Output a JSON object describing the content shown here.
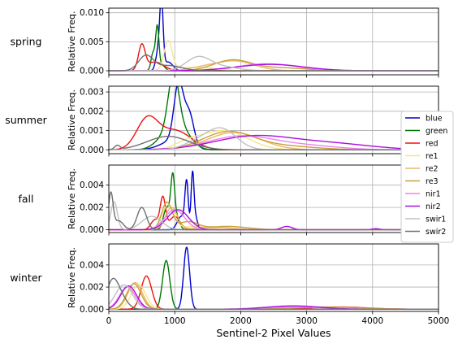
{
  "chart_data": {
    "type": "line",
    "xlabel": "Sentinel-2 Pixel Values",
    "ylabel": "Relative Freq.",
    "xlim": [
      0,
      5000
    ],
    "x_ticks": [
      "0",
      "1000",
      "2000",
      "3000",
      "4000",
      "5000"
    ],
    "grid": true,
    "legend_position": "right",
    "series_styles": [
      {
        "name": "blue",
        "color": "#0000cc"
      },
      {
        "name": "green",
        "color": "#007700"
      },
      {
        "name": "red",
        "color": "#ee1111"
      },
      {
        "name": "re1",
        "color": "#f5e68c"
      },
      {
        "name": "re2",
        "color": "#e8b860"
      },
      {
        "name": "re3",
        "color": "#c9a040"
      },
      {
        "name": "nir1",
        "color": "#ee82ee"
      },
      {
        "name": "nir2",
        "color": "#aa11dd"
      },
      {
        "name": "swir1",
        "color": "#c0c0c0"
      },
      {
        "name": "swir2",
        "color": "#707070"
      }
    ],
    "panels": [
      {
        "season": "spring",
        "ylim": [
          -0.0007,
          0.0108
        ],
        "y_ticks": [
          0,
          0.005,
          0.01
        ],
        "y_tick_labels": [
          "0.000",
          "0.005",
          "0.010"
        ],
        "series": [
          {
            "name": "blue",
            "peaks": [
              [
                800,
                0.0098,
                25
              ],
              [
                760,
                0.004,
                40
              ],
              [
                900,
                0.0015,
                70
              ]
            ]
          },
          {
            "name": "green",
            "peaks": [
              [
                670,
                0.003,
                30
              ],
              [
                735,
                0.0072,
                25
              ],
              [
                800,
                0.001,
                50
              ]
            ]
          },
          {
            "name": "red",
            "peaks": [
              [
                500,
                0.0042,
                50
              ],
              [
                700,
                0.0015,
                130
              ]
            ]
          },
          {
            "name": "re1",
            "peaks": [
              [
                900,
                0.005,
                60
              ],
              [
                1300,
                0.0006,
                300
              ]
            ]
          },
          {
            "name": "re2",
            "peaks": [
              [
                1900,
                0.0017,
                300
              ],
              [
                1400,
                0.0004,
                200
              ]
            ]
          },
          {
            "name": "re3",
            "peaks": [
              [
                1870,
                0.0018,
                280
              ],
              [
                2600,
                0.0005,
                400
              ]
            ]
          },
          {
            "name": "nir1",
            "peaks": [
              [
                2400,
                0.0012,
                450
              ]
            ]
          },
          {
            "name": "nir2",
            "peaks": [
              [
                2450,
                0.0011,
                500
              ]
            ]
          },
          {
            "name": "swir1",
            "peaks": [
              [
                1350,
                0.0022,
                180
              ],
              [
                1700,
                0.0007,
                250
              ]
            ]
          },
          {
            "name": "swir2",
            "peaks": [
              [
                560,
                0.0025,
                110
              ],
              [
                900,
                0.0009,
                200
              ]
            ]
          }
        ]
      },
      {
        "season": "summer",
        "ylim": [
          -0.0002,
          0.0033
        ],
        "y_ticks": [
          0,
          0.001,
          0.002,
          0.003
        ],
        "y_tick_labels": [
          "0.000",
          "0.001",
          "0.002",
          "0.003"
        ],
        "series": [
          {
            "name": "blue",
            "peaks": [
              [
                1060,
                0.003,
                70
              ],
              [
                1220,
                0.0016,
                70
              ],
              [
                1000,
                0.0005,
                200
              ]
            ]
          },
          {
            "name": "green",
            "peaks": [
              [
                980,
                0.0029,
                80
              ],
              [
                1100,
                0.001,
                150
              ],
              [
                850,
                0.0006,
                150
              ]
            ]
          },
          {
            "name": "red",
            "peaks": [
              [
                580,
                0.0015,
                160
              ],
              [
                1000,
                0.001,
                250
              ]
            ]
          },
          {
            "name": "re1",
            "peaks": [
              [
                1750,
                0.001,
                350
              ],
              [
                1200,
                0.0003,
                200
              ]
            ]
          },
          {
            "name": "re2",
            "peaks": [
              [
                1900,
                0.0009,
                400
              ]
            ]
          },
          {
            "name": "re3",
            "peaks": [
              [
                1800,
                0.0009,
                380
              ],
              [
                2600,
                0.0002,
                500
              ]
            ]
          },
          {
            "name": "nir1",
            "peaks": [
              [
                2000,
                0.0007,
                500
              ],
              [
                3000,
                0.0002,
                500
              ]
            ]
          },
          {
            "name": "nir2",
            "peaks": [
              [
                2200,
                0.0007,
                600
              ],
              [
                3400,
                0.0003,
                600
              ]
            ]
          },
          {
            "name": "swir1",
            "peaks": [
              [
                1700,
                0.0011,
                230
              ],
              [
                1300,
                0.0003,
                200
              ]
            ]
          },
          {
            "name": "swir2",
            "peaks": [
              [
                130,
                0.0002,
                40
              ],
              [
                900,
                0.0007,
                320
              ]
            ]
          }
        ]
      },
      {
        "season": "fall",
        "ylim": [
          -0.00025,
          0.0058
        ],
        "y_ticks": [
          0,
          0.002,
          0.004
        ],
        "y_tick_labels": [
          "0.000",
          "0.002",
          "0.004"
        ],
        "series": [
          {
            "name": "blue",
            "peaks": [
              [
                1270,
                0.005,
                22
              ],
              [
                1180,
                0.004,
                25
              ],
              [
                1100,
                0.0012,
                60
              ],
              [
                1320,
                0.001,
                30
              ]
            ]
          },
          {
            "name": "green",
            "peaks": [
              [
                970,
                0.0045,
                30
              ],
              [
                880,
                0.002,
                50
              ],
              [
                1040,
                0.001,
                40
              ]
            ]
          },
          {
            "name": "red",
            "peaks": [
              [
                820,
                0.0028,
                40
              ],
              [
                700,
                0.0009,
                60
              ],
              [
                1000,
                0.0012,
                80
              ]
            ]
          },
          {
            "name": "re1",
            "peaks": [
              [
                900,
                0.0022,
                90
              ],
              [
                1300,
                0.0003,
                200
              ]
            ]
          },
          {
            "name": "re2",
            "peaks": [
              [
                950,
                0.002,
                90
              ],
              [
                1600,
                0.0002,
                300
              ]
            ]
          },
          {
            "name": "re3",
            "peaks": [
              [
                880,
                0.0024,
                80
              ],
              [
                1200,
                0.0007,
                150
              ],
              [
                1800,
                0.0003,
                300
              ]
            ]
          },
          {
            "name": "nir1",
            "peaks": [
              [
                1000,
                0.0018,
                150
              ]
            ]
          },
          {
            "name": "nir2",
            "peaks": [
              [
                1050,
                0.0018,
                160
              ],
              [
                2700,
                0.0003,
                80
              ],
              [
                4050,
                0.0001,
                60
              ]
            ]
          },
          {
            "name": "swir1",
            "peaks": [
              [
                80,
                0.0025,
                50
              ],
              [
                650,
                0.0012,
                150
              ]
            ]
          },
          {
            "name": "swir2",
            "peaks": [
              [
                30,
                0.0032,
                35
              ],
              [
                500,
                0.002,
                70
              ],
              [
                150,
                0.0008,
                70
              ]
            ]
          }
        ]
      },
      {
        "season": "winter",
        "ylim": [
          -0.0002,
          0.0059
        ],
        "y_ticks": [
          0,
          0.002,
          0.004
        ],
        "y_tick_labels": [
          "0.000",
          "0.002",
          "0.004"
        ],
        "series": [
          {
            "name": "blue",
            "peaks": [
              [
                1180,
                0.0056,
                45
              ]
            ]
          },
          {
            "name": "green",
            "peaks": [
              [
                870,
                0.0044,
                55
              ]
            ]
          },
          {
            "name": "red",
            "peaks": [
              [
                570,
                0.003,
                80
              ],
              [
                3500,
                0.0002,
                400
              ]
            ]
          },
          {
            "name": "re1",
            "peaks": [
              [
                450,
                0.0022,
                110
              ]
            ]
          },
          {
            "name": "re2",
            "peaks": [
              [
                400,
                0.0024,
                110
              ]
            ]
          },
          {
            "name": "re3",
            "peaks": [
              [
                380,
                0.0023,
                110
              ],
              [
                3300,
                0.0002,
                500
              ]
            ]
          },
          {
            "name": "nir1",
            "peaks": [
              [
                280,
                0.002,
                120
              ],
              [
                2800,
                0.0002,
                400
              ]
            ]
          },
          {
            "name": "nir2",
            "peaks": [
              [
                300,
                0.0021,
                120
              ],
              [
                2800,
                0.0003,
                400
              ]
            ]
          },
          {
            "name": "swir1",
            "peaks": [
              [
                230,
                0.0022,
                130
              ]
            ]
          },
          {
            "name": "swir2",
            "peaks": [
              [
                50,
                0.0023,
                90
              ],
              [
                180,
                0.001,
                100
              ]
            ]
          }
        ]
      }
    ]
  }
}
